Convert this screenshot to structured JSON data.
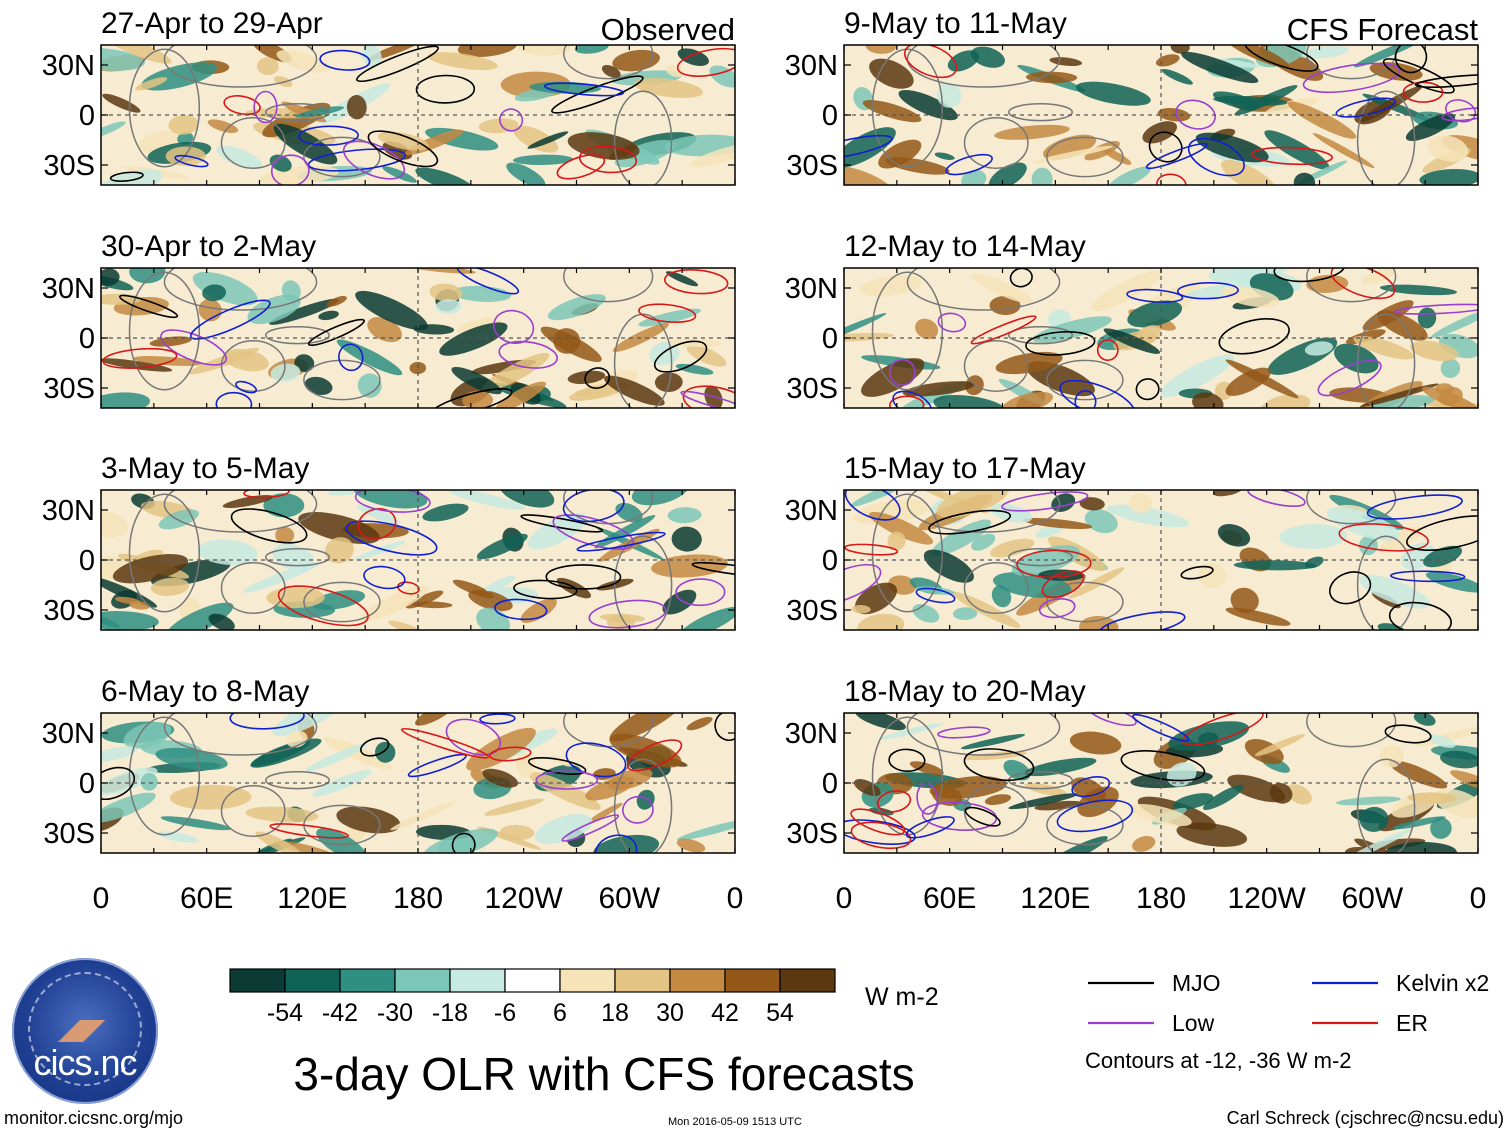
{
  "chart_data": {
    "type": "heatmap",
    "title": "3-day OLR with CFS forecasts",
    "units": "W m-2",
    "column_headers": [
      "Observed",
      "CFS Forecast"
    ],
    "panels": [
      {
        "period": "27-Apr to 29-Apr",
        "header": "Observed"
      },
      {
        "period": "30-Apr to 2-May"
      },
      {
        "period": "3-May to 5-May"
      },
      {
        "period": "6-May to 8-May"
      },
      {
        "period": "9-May to 11-May",
        "header": "CFS Forecast"
      },
      {
        "period": "12-May to 14-May"
      },
      {
        "period": "15-May to 17-May"
      },
      {
        "period": "18-May to 20-May"
      }
    ],
    "x_ticks": [
      "0",
      "60E",
      "120E",
      "180",
      "120W",
      "60W",
      "0"
    ],
    "y_ticks": [
      "30N",
      "0",
      "30S"
    ],
    "colorbar": {
      "levels": [
        -54,
        -42,
        -30,
        -18,
        -6,
        6,
        18,
        30,
        42,
        54
      ],
      "colors": [
        "#0b3b33",
        "#0f6356",
        "#2f8f82",
        "#7cc7b7",
        "#c7eae2",
        "#ffffff",
        "#f6e4b8",
        "#e4c484",
        "#c48a42",
        "#945818",
        "#5c3810"
      ]
    },
    "contour_legend": [
      {
        "label": "MJO",
        "color": "#000000"
      },
      {
        "label": "Kelvin x2",
        "color": "#1020d0"
      },
      {
        "label": "Low",
        "color": "#9a3fd0"
      },
      {
        "label": "ER",
        "color": "#d81818"
      }
    ],
    "contour_note": "Contours at -12, -36 W m-2"
  },
  "footer": {
    "website": "monitor.cicsnc.org/mjo",
    "timestamp": "Mon 2016-05-09 1513 UTC",
    "author": "Carl Schreck (cjschrec@ncsu.edu)",
    "logo_text": "cics.nc"
  }
}
